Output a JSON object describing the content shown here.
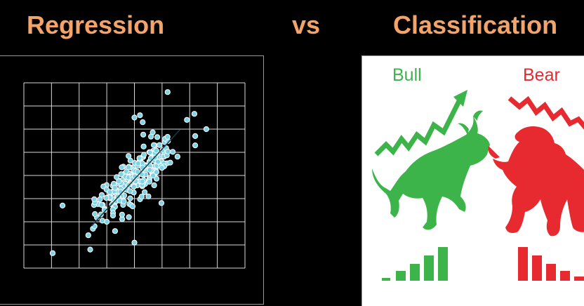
{
  "headings": {
    "left": "Regression",
    "middle": "vs",
    "right": "Classification"
  },
  "market": {
    "bull_label": "Bull",
    "bear_label": "Bear"
  },
  "colors": {
    "heading": "#f4a46a",
    "scatter_point": "#7fd3e6",
    "grid": "#d8d8d8",
    "bull": "#3cb44a",
    "bear": "#e62a30",
    "panel_border": "#9a9a9a"
  },
  "icons": {
    "bull": "bull-icon",
    "bear": "bear-icon"
  },
  "chart_data": {
    "type": "scatter",
    "title": "",
    "xlabel": "",
    "ylabel": "",
    "grid": true,
    "trend_line": true,
    "xlim": [
      0,
      8
    ],
    "ylim": [
      0,
      8
    ],
    "points": [
      [
        5.2,
        7.6
      ],
      [
        4.2,
        6.6
      ],
      [
        4.3,
        6.3
      ],
      [
        4.0,
        6.5
      ],
      [
        5.9,
        6.4
      ],
      [
        6.6,
        6.0
      ],
      [
        6.2,
        5.7
      ],
      [
        6.2,
        5.3
      ],
      [
        1.4,
        2.7
      ],
      [
        2.5,
        1.7
      ],
      [
        2.4,
        0.8
      ],
      [
        4.0,
        1.1
      ],
      [
        3.0,
        2.0
      ],
      [
        3.3,
        1.6
      ],
      [
        3.8,
        2.2
      ],
      [
        5.1,
        5.0
      ]
    ],
    "cluster": {
      "count": 230,
      "center": [
        4.05,
        3.9
      ],
      "slope": 1.3,
      "spread_along": 1.05,
      "spread_across": 0.32,
      "seed": 7
    }
  }
}
